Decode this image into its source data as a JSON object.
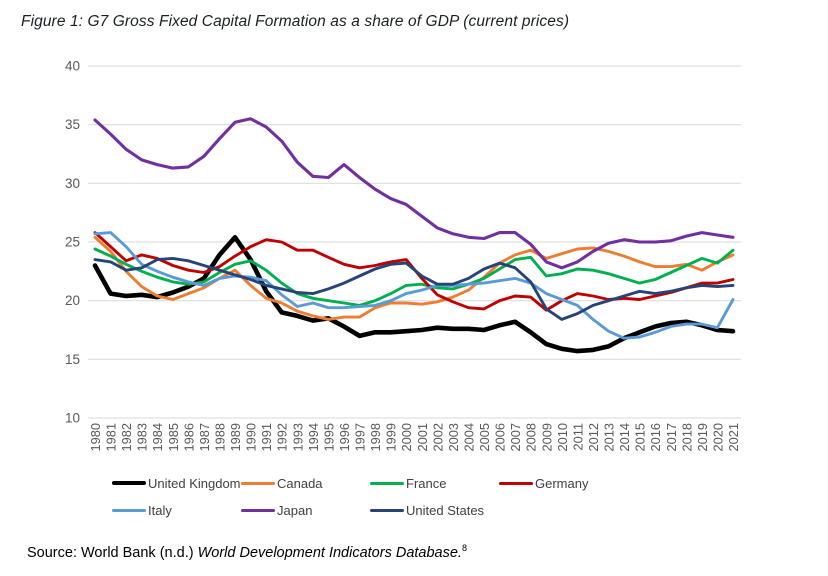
{
  "figure": {
    "title": "Figure 1: G7 Gross Fixed Capital Formation as a share of GDP (current prices)"
  },
  "chart_data": {
    "type": "line",
    "title": "Figure 1: G7 Gross Fixed Capital Formation as a share of GDP (current prices)",
    "xlabel": "",
    "ylabel": "",
    "ylim": [
      10,
      40
    ],
    "yticks": [
      10,
      15,
      20,
      25,
      30,
      35,
      40
    ],
    "grid": true,
    "legend_position": "bottom",
    "x": [
      1980,
      1981,
      1982,
      1983,
      1984,
      1985,
      1986,
      1987,
      1988,
      1989,
      1990,
      1991,
      1992,
      1993,
      1994,
      1995,
      1996,
      1997,
      1998,
      1999,
      2000,
      2001,
      2002,
      2003,
      2004,
      2005,
      2006,
      2007,
      2008,
      2009,
      2010,
      2011,
      2012,
      2013,
      2014,
      2015,
      2016,
      2017,
      2018,
      2019,
      2020,
      2021
    ],
    "series": [
      {
        "name": "United Kingdom",
        "color": "#000000",
        "line_width": 4.6,
        "values": [
          23.0,
          20.6,
          20.4,
          20.5,
          20.3,
          20.7,
          21.2,
          21.9,
          23.9,
          25.4,
          23.5,
          20.8,
          19.0,
          18.7,
          18.3,
          18.5,
          17.8,
          17.0,
          17.3,
          17.3,
          17.4,
          17.5,
          17.7,
          17.6,
          17.6,
          17.5,
          17.9,
          18.2,
          17.3,
          16.3,
          15.9,
          15.7,
          15.8,
          16.1,
          16.8,
          17.3,
          17.8,
          18.1,
          18.2,
          17.9,
          17.5,
          17.4
        ]
      },
      {
        "name": "Canada",
        "color": "#ED7D31",
        "line_width": 2.9,
        "values": [
          25.4,
          24.2,
          22.5,
          21.2,
          20.4,
          20.1,
          20.6,
          21.1,
          21.9,
          22.6,
          21.3,
          20.2,
          19.8,
          19.1,
          18.7,
          18.4,
          18.6,
          18.6,
          19.4,
          19.8,
          19.8,
          19.7,
          19.9,
          20.3,
          20.9,
          22.0,
          23.2,
          23.9,
          24.3,
          23.6,
          24.0,
          24.4,
          24.5,
          24.2,
          23.8,
          23.3,
          22.9,
          22.9,
          23.1,
          22.6,
          23.3,
          23.9
        ]
      },
      {
        "name": "France",
        "color": "#00B050",
        "line_width": 2.9,
        "values": [
          24.4,
          23.8,
          23.1,
          22.5,
          22.0,
          21.6,
          21.4,
          21.6,
          22.4,
          23.1,
          23.4,
          22.6,
          21.5,
          20.6,
          20.2,
          20.0,
          19.8,
          19.6,
          20.0,
          20.6,
          21.3,
          21.4,
          21.1,
          21.0,
          21.4,
          21.9,
          22.7,
          23.5,
          23.7,
          22.1,
          22.3,
          22.7,
          22.6,
          22.3,
          21.9,
          21.5,
          21.8,
          22.4,
          23.0,
          23.6,
          23.2,
          24.3
        ]
      },
      {
        "name": "Germany",
        "color": "#C00000",
        "line_width": 2.9,
        "values": [
          25.8,
          24.6,
          23.4,
          23.9,
          23.6,
          23.0,
          22.6,
          22.4,
          22.9,
          23.8,
          24.6,
          25.2,
          25.0,
          24.3,
          24.3,
          23.7,
          23.1,
          22.8,
          23.0,
          23.3,
          23.5,
          21.9,
          20.5,
          19.9,
          19.4,
          19.3,
          20.0,
          20.4,
          20.3,
          19.2,
          20.0,
          20.6,
          20.4,
          20.1,
          20.2,
          20.1,
          20.4,
          20.7,
          21.1,
          21.5,
          21.5,
          21.8
        ]
      },
      {
        "name": "Italy",
        "color": "#5B9BD5",
        "line_width": 2.9,
        "values": [
          25.7,
          25.8,
          24.6,
          23.1,
          22.5,
          22.0,
          21.6,
          21.3,
          21.9,
          22.1,
          22.0,
          21.7,
          20.5,
          19.5,
          19.8,
          19.4,
          19.4,
          19.5,
          19.6,
          20.0,
          20.6,
          20.9,
          21.3,
          21.3,
          21.4,
          21.5,
          21.7,
          21.9,
          21.5,
          20.6,
          20.1,
          19.6,
          18.4,
          17.4,
          16.8,
          16.9,
          17.3,
          17.8,
          18.0,
          18.0,
          17.7,
          20.1
        ]
      },
      {
        "name": "Japan",
        "color": "#7030A0",
        "line_width": 3.1,
        "values": [
          35.4,
          34.2,
          32.9,
          32.0,
          31.6,
          31.3,
          31.4,
          32.3,
          33.8,
          35.2,
          35.5,
          34.8,
          33.6,
          31.8,
          30.6,
          30.5,
          31.6,
          30.5,
          29.5,
          28.7,
          28.2,
          27.2,
          26.2,
          25.7,
          25.4,
          25.3,
          25.8,
          25.8,
          24.8,
          23.3,
          22.8,
          23.3,
          24.2,
          24.9,
          25.2,
          25.0,
          25.0,
          25.1,
          25.5,
          25.8,
          25.6,
          25.4
        ]
      },
      {
        "name": "United States",
        "color": "#264478",
        "line_width": 2.9,
        "values": [
          23.5,
          23.3,
          22.6,
          22.8,
          23.5,
          23.6,
          23.4,
          23.0,
          22.6,
          22.2,
          21.8,
          21.3,
          21.0,
          20.7,
          20.6,
          21.0,
          21.5,
          22.1,
          22.7,
          23.1,
          23.2,
          22.1,
          21.4,
          21.4,
          21.9,
          22.7,
          23.2,
          22.8,
          21.6,
          19.3,
          18.4,
          18.9,
          19.6,
          20.0,
          20.4,
          20.8,
          20.6,
          20.8,
          21.1,
          21.3,
          21.2,
          21.3
        ]
      }
    ]
  },
  "source": {
    "prefix": "Source: World Bank (n.d.) ",
    "italic_part": "World Development Indicators Database.",
    "superscript": "8"
  },
  "style": {
    "grid_color": "#D9D9D9",
    "axis_text_color": "#595959",
    "legend_text_color": "#404040"
  }
}
